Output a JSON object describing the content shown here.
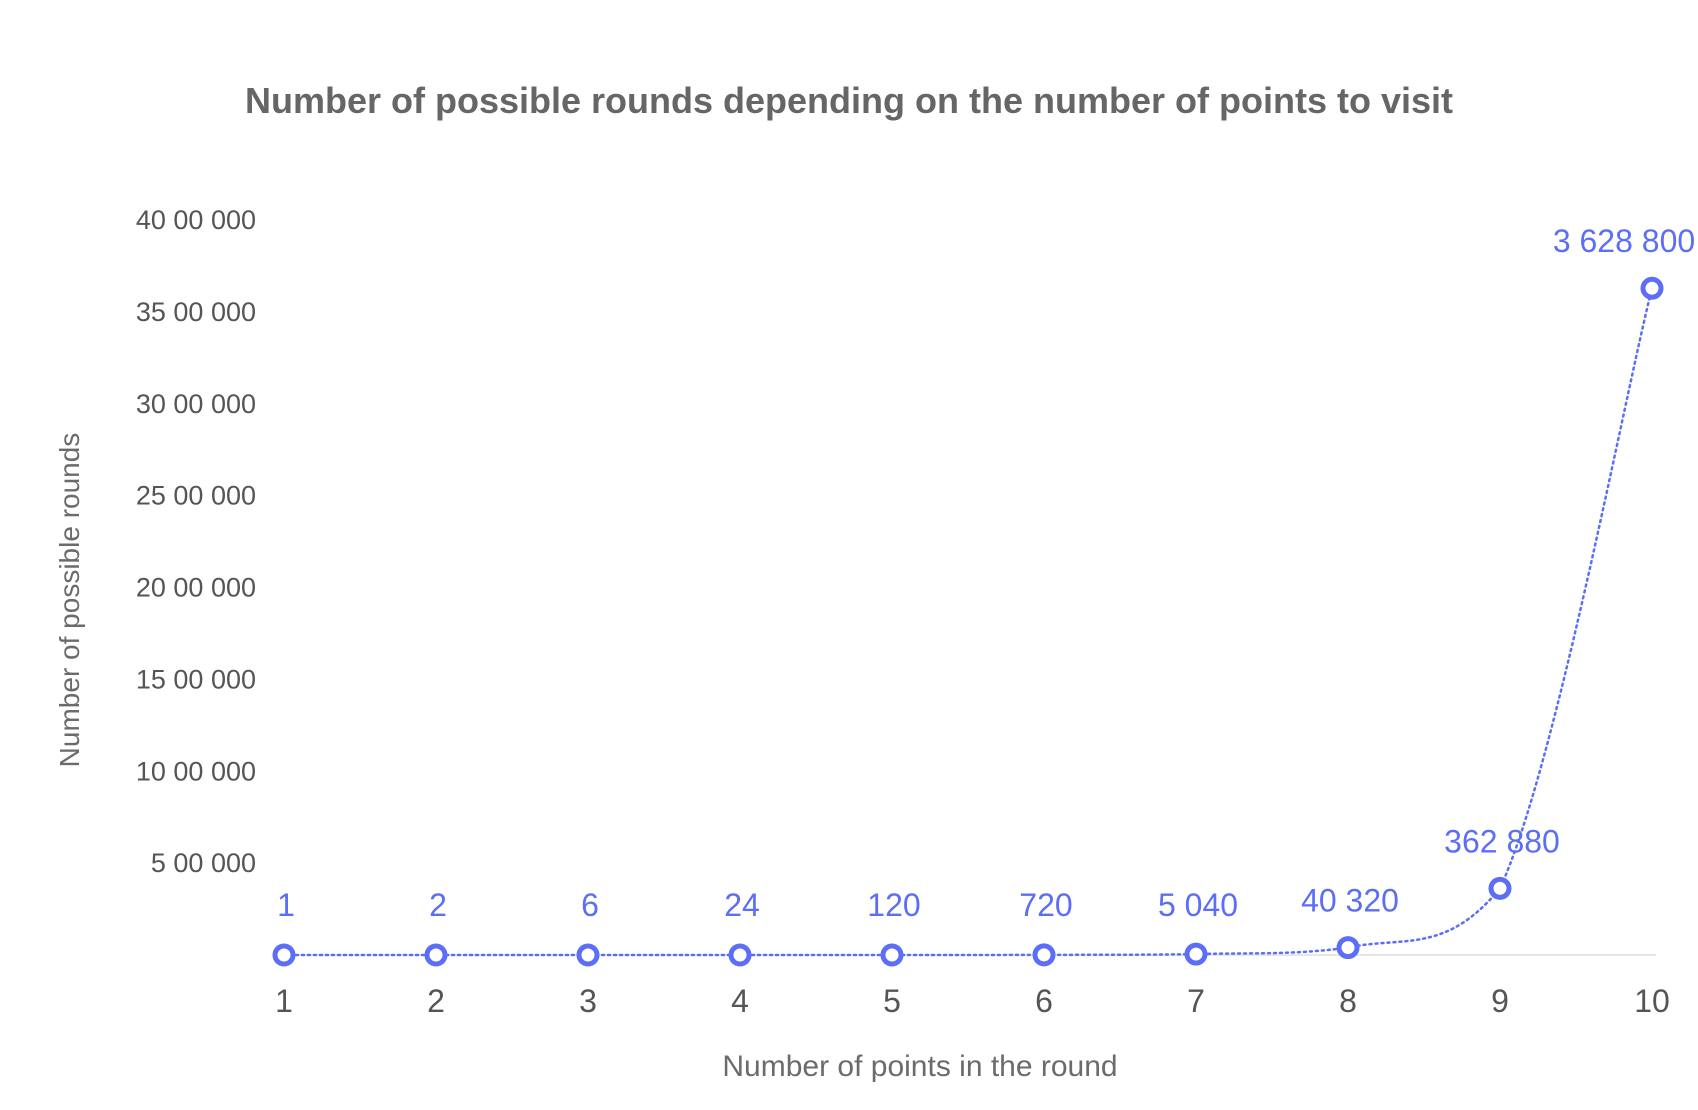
{
  "chart_data": {
    "type": "line",
    "title": "Number of possible rounds depending on the number of points to visit",
    "xlabel": "Number of points in the round",
    "ylabel": "Number of possible rounds",
    "x": [
      1,
      2,
      3,
      4,
      5,
      6,
      7,
      8,
      9,
      10
    ],
    "series": [
      {
        "values": [
          1,
          2,
          6,
          24,
          120,
          720,
          5040,
          40320,
          362880,
          3628800
        ],
        "data_labels": [
          "1",
          "2",
          "6",
          "24",
          "120",
          "720",
          "5 040",
          "40 320",
          "362 880",
          "3 628 800"
        ]
      }
    ],
    "ylim": [
      0,
      4000000
    ],
    "yticks": [
      {
        "value": 500000,
        "label": "5 00 000"
      },
      {
        "value": 1000000,
        "label": "10 00 000"
      },
      {
        "value": 1500000,
        "label": "15 00 000"
      },
      {
        "value": 2000000,
        "label": "20 00 000"
      },
      {
        "value": 2500000,
        "label": "25 00 000"
      },
      {
        "value": 3000000,
        "label": "30 00 000"
      },
      {
        "value": 3500000,
        "label": "35 00 000"
      },
      {
        "value": 4000000,
        "label": "40 00 000"
      }
    ],
    "xticks": [
      "1",
      "2",
      "3",
      "4",
      "5",
      "6",
      "7",
      "8",
      "9",
      "10"
    ],
    "grid": false,
    "line_style": "dotted",
    "marker": "open-circle",
    "colors": {
      "series": "#5b6ef5",
      "axis": "#e6e6e6",
      "title": "#666666",
      "tick": "#555555"
    }
  }
}
